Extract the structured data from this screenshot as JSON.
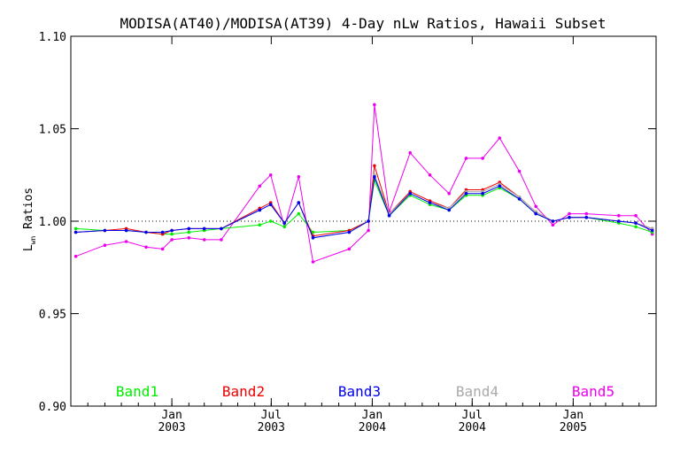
{
  "chart_data": {
    "type": "line",
    "title": "MODISA(AT40)/MODISA(AT39) 4-Day nLw Ratios, Hawaii Subset",
    "ylabel_main": "L",
    "ylabel_sub": "wn",
    "ylabel_rest": " Ratios",
    "ylim": [
      0.9,
      1.1
    ],
    "yticks": [
      "0.90",
      "0.95",
      "1.00",
      "1.05",
      "1.10"
    ],
    "xticks": [
      {
        "month": "Jan",
        "year": "2003"
      },
      {
        "month": "Jul",
        "year": "2003"
      },
      {
        "month": "Jan",
        "year": "2004"
      },
      {
        "month": "Jul",
        "year": "2004"
      },
      {
        "month": "Jan",
        "year": "2005"
      }
    ],
    "reference_line": 1.0,
    "x": [
      "2002-07-10",
      "2002-09-01",
      "2002-10-10",
      "2002-11-15",
      "2002-12-15",
      "2003-01-01",
      "2003-02-01",
      "2003-03-01",
      "2003-04-01",
      "2003-06-10",
      "2003-06-30",
      "2003-07-25",
      "2003-08-20",
      "2003-09-15",
      "2003-11-20",
      "2003-12-25",
      "2004-01-05",
      "2004-02-01",
      "2004-03-10",
      "2004-04-15",
      "2004-05-20",
      "2004-06-20",
      "2004-07-20",
      "2004-08-20",
      "2004-09-25",
      "2004-10-25",
      "2004-11-25",
      "2004-12-25",
      "2005-01-25",
      "2005-03-25",
      "2005-04-25",
      "2005-05-25"
    ],
    "series": [
      {
        "name": "Band1",
        "color": "#00ee00",
        "values": [
          0.996,
          0.995,
          0.995,
          0.994,
          0.993,
          0.993,
          0.994,
          0.995,
          0.996,
          0.998,
          1.0,
          0.997,
          1.004,
          0.994,
          0.995,
          1.0,
          1.022,
          1.003,
          1.014,
          1.009,
          1.006,
          1.014,
          1.014,
          1.018,
          1.012,
          1.004,
          1.0,
          1.002,
          1.002,
          0.999,
          0.997,
          0.994
        ]
      },
      {
        "name": "Band2",
        "color": "#ee0000",
        "values": [
          0.994,
          0.995,
          0.996,
          0.994,
          0.993,
          0.995,
          0.996,
          0.996,
          0.996,
          1.007,
          1.01,
          0.999,
          1.01,
          0.992,
          0.995,
          1.0,
          1.03,
          1.004,
          1.016,
          1.011,
          1.007,
          1.017,
          1.017,
          1.021,
          1.013,
          1.005,
          1.0,
          1.002,
          1.002,
          1.0,
          0.999,
          0.996
        ]
      },
      {
        "name": "Band3",
        "color": "#0000ee",
        "values": [
          0.994,
          0.995,
          0.995,
          0.994,
          0.994,
          0.995,
          0.996,
          0.996,
          0.996,
          1.006,
          1.009,
          0.999,
          1.01,
          0.991,
          0.994,
          1.0,
          1.024,
          1.003,
          1.015,
          1.01,
          1.006,
          1.015,
          1.015,
          1.019,
          1.012,
          1.004,
          1.0,
          1.002,
          1.002,
          1.0,
          0.999,
          0.995
        ]
      },
      {
        "name": "Band4",
        "color": "#aaaaaa",
        "values": [
          0.994,
          0.995,
          0.995,
          0.994,
          0.994,
          0.995,
          0.996,
          0.996,
          0.996,
          1.006,
          1.009,
          0.999,
          1.01,
          0.991,
          0.994,
          1.0,
          1.025,
          1.004,
          1.015,
          1.01,
          1.007,
          1.016,
          1.016,
          1.02,
          1.013,
          1.005,
          1.0,
          1.002,
          1.002,
          1.0,
          0.999,
          0.996
        ]
      },
      {
        "name": "Band5",
        "color": "#ee00ee",
        "values": [
          0.981,
          0.987,
          0.989,
          0.986,
          0.985,
          0.99,
          0.991,
          0.99,
          0.99,
          1.019,
          1.025,
          0.997,
          1.024,
          0.978,
          0.985,
          0.995,
          1.063,
          1.005,
          1.037,
          1.025,
          1.015,
          1.034,
          1.034,
          1.045,
          1.027,
          1.008,
          0.998,
          1.004,
          1.004,
          1.003,
          1.003,
          0.993
        ]
      }
    ]
  }
}
